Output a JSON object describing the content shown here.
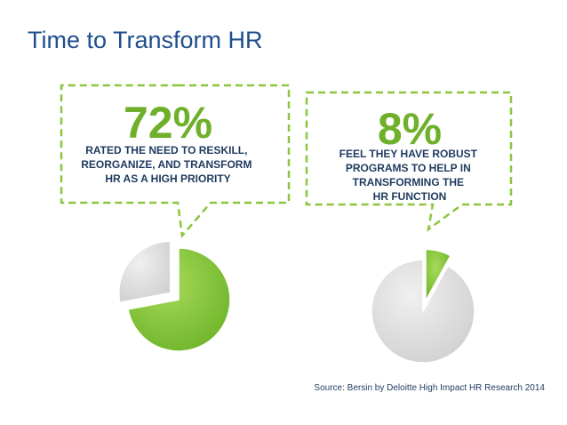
{
  "title": "Time to Transform HR",
  "source": "Source: Bersin by Deloitte High Impact HR Research 2014",
  "colors": {
    "accent": "#8cc63e",
    "accent_dark": "#5fa31b",
    "gray": "#d9d9d9",
    "title": "#1f4e8c"
  },
  "chart_data": [
    {
      "type": "pie",
      "values": [
        72,
        28
      ],
      "labels": [
        "",
        ""
      ],
      "highlight": "72%",
      "caption": [
        "RATED THE NEED TO RESKILL,",
        "REORGANIZE, AND TRANSFORM",
        "HR AS A HIGH PRIORITY"
      ],
      "exploded": "gray"
    },
    {
      "type": "pie",
      "values": [
        8,
        92
      ],
      "labels": [
        "",
        ""
      ],
      "highlight": "8%",
      "caption": [
        "FEEL THEY HAVE ROBUST",
        "PROGRAMS TO HELP IN",
        "TRANSFORMING THE",
        "HR FUNCTION"
      ],
      "exploded": "green"
    }
  ]
}
